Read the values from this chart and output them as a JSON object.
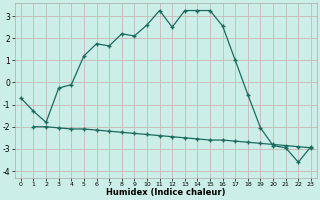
{
  "title": "",
  "xlabel": "Humidex (Indice chaleur)",
  "bg_color": "#cceee8",
  "line_color": "#1a6b5e",
  "grid_color_major": "#c8b8b8",
  "grid_color_minor": "#ddd0d0",
  "curve1_x": [
    0,
    1,
    2,
    3,
    4,
    5,
    6,
    7,
    8,
    9,
    10,
    11,
    12,
    13,
    14,
    15,
    16,
    17,
    18,
    19,
    20,
    21,
    22,
    23
  ],
  "curve1_y": [
    -0.7,
    -1.3,
    -1.8,
    -0.25,
    -0.1,
    1.2,
    1.75,
    1.65,
    2.2,
    2.1,
    2.6,
    3.25,
    2.5,
    3.25,
    3.25,
    3.25,
    2.55,
    1.0,
    -0.55,
    -2.05,
    -2.85,
    -2.95,
    -3.6,
    -2.9
  ],
  "curve2_x": [
    1,
    2,
    3,
    4,
    5,
    6,
    7,
    8,
    9,
    10,
    11,
    12,
    13,
    14,
    15,
    16,
    17,
    18,
    19,
    20,
    21,
    22,
    23
  ],
  "curve2_y": [
    -2.0,
    -2.0,
    -2.05,
    -2.1,
    -2.1,
    -2.15,
    -2.2,
    -2.25,
    -2.3,
    -2.35,
    -2.4,
    -2.45,
    -2.5,
    -2.55,
    -2.6,
    -2.6,
    -2.65,
    -2.7,
    -2.75,
    -2.8,
    -2.85,
    -2.9,
    -2.95
  ],
  "xlim": [
    -0.5,
    23.5
  ],
  "ylim": [
    -4.3,
    3.6
  ],
  "yticks": [
    -4,
    -3,
    -2,
    -1,
    0,
    1,
    2,
    3
  ],
  "xticks": [
    0,
    1,
    2,
    3,
    4,
    5,
    6,
    7,
    8,
    9,
    10,
    11,
    12,
    13,
    14,
    15,
    16,
    17,
    18,
    19,
    20,
    21,
    22,
    23
  ]
}
